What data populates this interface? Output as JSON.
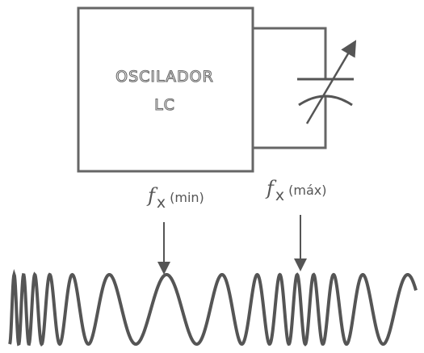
{
  "diagram": {
    "oscillator": {
      "label_line1": "OSCILADOR",
      "label_line2": "LC"
    },
    "capacitor": {
      "icon": "variable-capacitor-icon"
    },
    "frequency_markers": {
      "min": {
        "symbol": "f",
        "subscript": "x",
        "qualifier": "(min)"
      },
      "max": {
        "symbol": "f",
        "subscript": "x",
        "qualifier": "(máx)"
      }
    },
    "colors": {
      "ink": "#555555",
      "background": "#ffffff"
    }
  }
}
